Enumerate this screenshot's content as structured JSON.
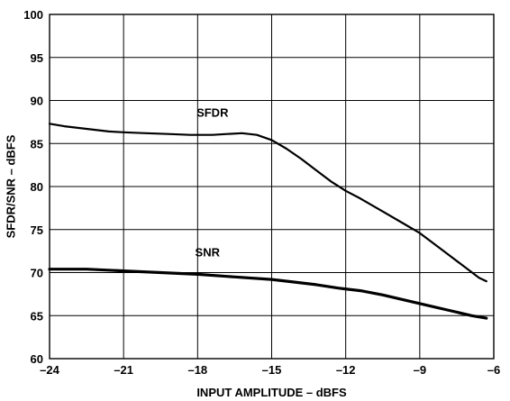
{
  "chart_data": {
    "type": "line",
    "title": "",
    "xlabel": "INPUT AMPLITUDE – dBFS",
    "ylabel": "SFDR/SNR – dBFS",
    "xlim": [
      -24,
      -6
    ],
    "ylim": [
      60,
      100
    ],
    "x_ticks": [
      -24,
      -21,
      -18,
      -15,
      -12,
      -9,
      -6
    ],
    "x_tick_labels": [
      "–24",
      "–21",
      "–18",
      "–15",
      "–12",
      "–9",
      "–6"
    ],
    "y_ticks": [
      60,
      65,
      70,
      75,
      80,
      85,
      90,
      95,
      100
    ],
    "y_tick_labels": [
      "60",
      "65",
      "70",
      "75",
      "80",
      "85",
      "90",
      "95",
      "100"
    ],
    "grid": true,
    "legend": "none",
    "series": [
      {
        "name": "SFDR",
        "color": "#000000",
        "x": [
          -24,
          -23.4,
          -22.5,
          -21.6,
          -21,
          -20.1,
          -19.2,
          -18.3,
          -17.4,
          -16.8,
          -16.2,
          -15.6,
          -15,
          -14.4,
          -13.8,
          -13.2,
          -12.6,
          -12,
          -11.4,
          -10.5,
          -9.6,
          -9,
          -8.4,
          -7.8,
          -7.2,
          -6.6,
          -6.3
        ],
        "values": [
          87.3,
          87.0,
          86.7,
          86.4,
          86.3,
          86.2,
          86.1,
          86.0,
          86.0,
          86.1,
          86.2,
          86.0,
          85.4,
          84.4,
          83.2,
          81.9,
          80.6,
          79.5,
          78.6,
          77.1,
          75.6,
          74.6,
          73.3,
          72.0,
          70.7,
          69.4,
          69.0
        ],
        "stroke_width": 2.2
      },
      {
        "name": "SNR",
        "color": "#000000",
        "x": [
          -24,
          -22.5,
          -21,
          -19.5,
          -18,
          -16.5,
          -15,
          -14.1,
          -13.2,
          -12.3,
          -11.4,
          -10.5,
          -9.6,
          -8.7,
          -7.8,
          -6.9,
          -6.3
        ],
        "values": [
          70.4,
          70.4,
          70.2,
          70.0,
          69.8,
          69.5,
          69.2,
          68.9,
          68.6,
          68.2,
          67.9,
          67.4,
          66.8,
          66.2,
          65.6,
          65.0,
          64.7
        ],
        "stroke_width": 3.2
      }
    ],
    "annotations": [
      {
        "text": "SFDR",
        "x": -17.4,
        "y": 88.1
      },
      {
        "text": "SNR",
        "x": -17.6,
        "y": 71.9
      }
    ]
  }
}
